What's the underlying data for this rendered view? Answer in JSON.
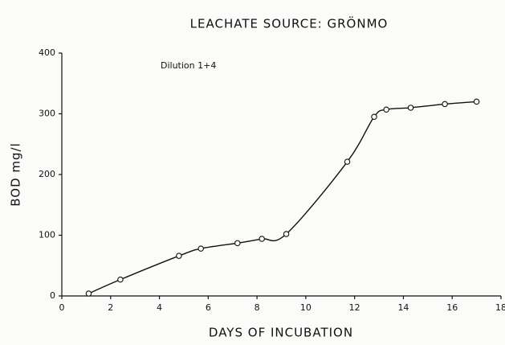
{
  "chart_data": {
    "type": "line",
    "title": "LEACHATE SOURCE: GRÖNMO",
    "annotation": "Dilution 1+4",
    "xlabel": "DAYS OF INCUBATION",
    "ylabel": "BOD mg/l",
    "x": [
      1.1,
      2.4,
      4.8,
      5.7,
      7.2,
      8.2,
      9.2,
      11.7,
      12.8,
      13.3,
      14.3,
      15.7,
      17.0
    ],
    "values": [
      4,
      27,
      66,
      78,
      87,
      94,
      102,
      221,
      295,
      307,
      310,
      316,
      320
    ],
    "color": "#111111",
    "xlim": [
      0,
      18
    ],
    "ylim": [
      0,
      400
    ],
    "xticks": [
      0,
      2,
      4,
      6,
      8,
      10,
      12,
      14,
      16,
      18
    ],
    "yticks": [
      0,
      100,
      200,
      300,
      400
    ],
    "grid": false
  }
}
